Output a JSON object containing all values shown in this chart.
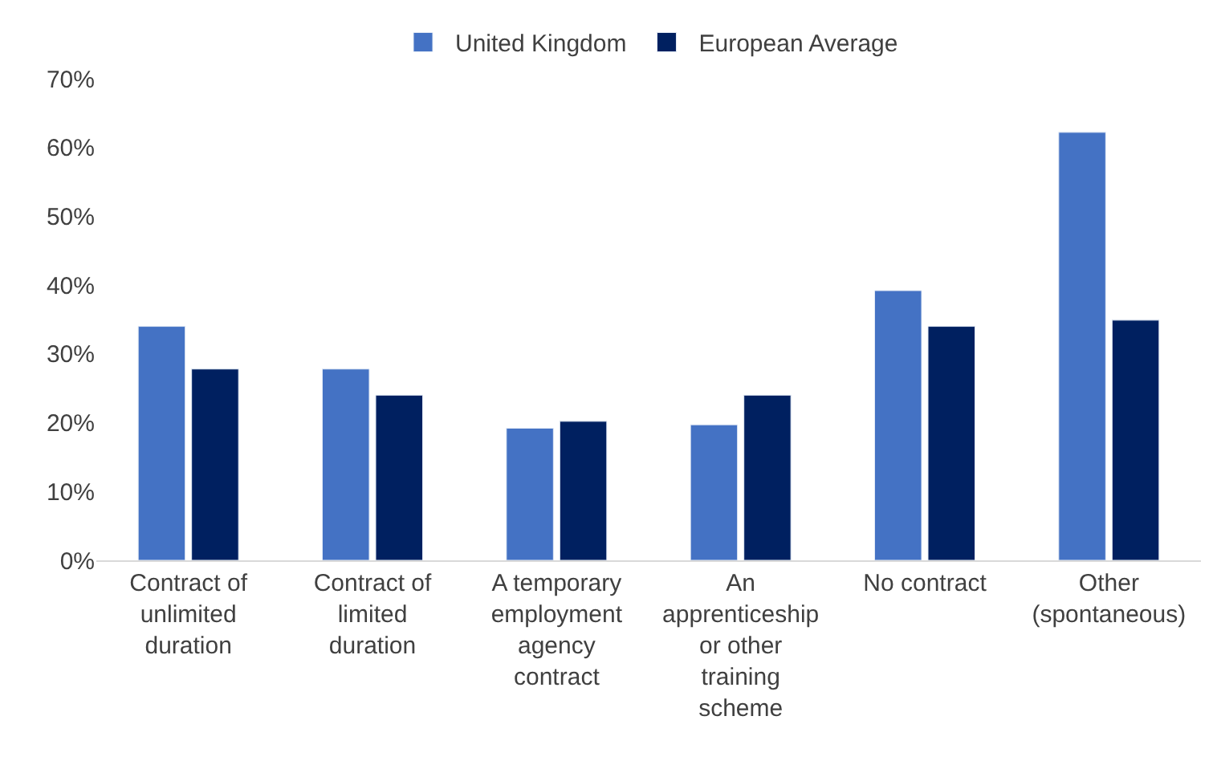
{
  "chart_data": {
    "type": "bar",
    "categories": [
      "Contract of unlimited duration",
      "Contract of limited duration",
      "A temporary employment agency contract",
      "An apprenticeship or other training scheme",
      "No contract",
      "Other (spontaneous)"
    ],
    "series": [
      {
        "name": "United Kingdom",
        "color": "#4472c4",
        "values": [
          34,
          27.8,
          19.2,
          19.7,
          39.2,
          62.2
        ]
      },
      {
        "name": "European Average",
        "color": "#002060",
        "values": [
          27.8,
          24,
          20.2,
          24,
          34,
          34.9
        ]
      }
    ],
    "ylim": [
      0,
      70
    ],
    "yticks": [
      {
        "value": 0,
        "label": "0%"
      },
      {
        "value": 10,
        "label": "10%"
      },
      {
        "value": 20,
        "label": "20%"
      },
      {
        "value": 30,
        "label": "30%"
      },
      {
        "value": 40,
        "label": "40%"
      },
      {
        "value": 50,
        "label": "50%"
      },
      {
        "value": 60,
        "label": "60%"
      },
      {
        "value": 70,
        "label": "70%"
      }
    ],
    "grid": false,
    "legend": "top"
  }
}
